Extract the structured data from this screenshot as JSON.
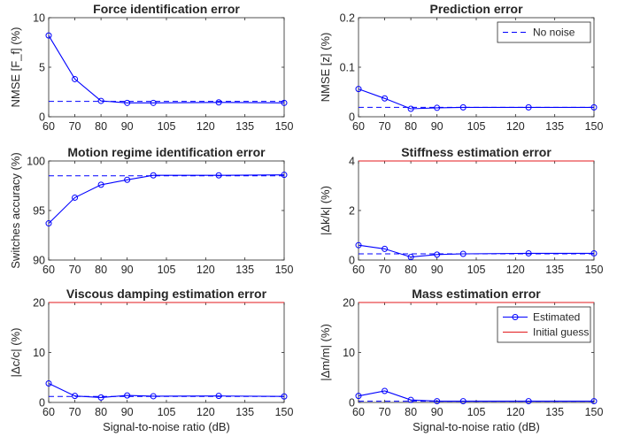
{
  "chart_data": [
    {
      "type": "line",
      "title": "Force identification error",
      "ylabel": "NMSE [F_f] (%)",
      "xlabel": "",
      "x": [
        60,
        70,
        80,
        90,
        100,
        125,
        150
      ],
      "xticks": [
        60,
        70,
        80,
        90,
        105,
        120,
        135,
        150
      ],
      "xlim": [
        60,
        150
      ],
      "ylim": [
        0,
        10
      ],
      "yticks": [
        0,
        5,
        10
      ],
      "series": [
        {
          "name": "Estimated",
          "color": "#0000ff",
          "style": "solid-circle",
          "values": [
            8.2,
            3.8,
            1.6,
            1.4,
            1.4,
            1.45,
            1.4
          ]
        },
        {
          "name": "No noise",
          "color": "#0000ff",
          "style": "dashed",
          "values": [
            1.55,
            1.55,
            1.55,
            1.55,
            1.55,
            1.55,
            1.55
          ]
        }
      ],
      "legend": null
    },
    {
      "type": "line",
      "title": "Prediction error",
      "ylabel": "NMSE [z] (%)",
      "xlabel": "",
      "x": [
        60,
        70,
        80,
        90,
        100,
        125,
        150
      ],
      "xticks": [
        60,
        70,
        80,
        90,
        105,
        120,
        135,
        150
      ],
      "xlim": [
        60,
        150
      ],
      "ylim": [
        0,
        0.2
      ],
      "yticks": [
        0,
        0.1,
        0.2
      ],
      "series": [
        {
          "name": "Estimated",
          "color": "#0000ff",
          "style": "solid-circle",
          "values": [
            0.056,
            0.037,
            0.016,
            0.018,
            0.019,
            0.019,
            0.019
          ]
        },
        {
          "name": "No noise",
          "color": "#0000ff",
          "style": "dashed",
          "values": [
            0.019,
            0.019,
            0.019,
            0.019,
            0.019,
            0.019,
            0.019
          ]
        }
      ],
      "legend": {
        "position": "top-right",
        "entries": [
          {
            "label": "No noise",
            "series": 1
          }
        ]
      }
    },
    {
      "type": "line",
      "title": "Motion regime identification error",
      "ylabel": "Switches accuracy (%)",
      "xlabel": "",
      "x": [
        60,
        70,
        80,
        90,
        100,
        125,
        150
      ],
      "xticks": [
        60,
        70,
        80,
        90,
        105,
        120,
        135,
        150
      ],
      "xlim": [
        60,
        150
      ],
      "ylim": [
        90,
        100
      ],
      "yticks": [
        90,
        95,
        100
      ],
      "series": [
        {
          "name": "Estimated",
          "color": "#0000ff",
          "style": "solid-circle",
          "values": [
            93.7,
            96.3,
            97.6,
            98.1,
            98.55,
            98.55,
            98.6
          ]
        },
        {
          "name": "No noise",
          "color": "#0000ff",
          "style": "dashed",
          "values": [
            98.5,
            98.5,
            98.5,
            98.5,
            98.5,
            98.5,
            98.5
          ]
        }
      ],
      "legend": null
    },
    {
      "type": "line",
      "title": "Stiffness estimation error",
      "ylabel": "|Δk/k| (%)",
      "xlabel": "",
      "x": [
        60,
        70,
        80,
        90,
        100,
        125,
        150
      ],
      "xticks": [
        60,
        70,
        80,
        90,
        105,
        120,
        135,
        150
      ],
      "xlim": [
        60,
        150
      ],
      "ylim": [
        0,
        4
      ],
      "yticks": [
        0,
        2,
        4
      ],
      "series": [
        {
          "name": "Estimated",
          "color": "#0000ff",
          "style": "solid-circle",
          "values": [
            0.6,
            0.45,
            0.12,
            0.22,
            0.25,
            0.27,
            0.27
          ]
        },
        {
          "name": "No noise",
          "color": "#0000ff",
          "style": "dashed",
          "values": [
            0.25,
            0.25,
            0.25,
            0.25,
            0.25,
            0.25,
            0.25
          ]
        },
        {
          "name": "Initial guess",
          "color": "#e31a1c",
          "style": "solid",
          "values": [
            4,
            4,
            4,
            4,
            4,
            4,
            4
          ]
        }
      ],
      "legend": null
    },
    {
      "type": "line",
      "title": "Viscous damping estimation error",
      "ylabel": "|Δc/c| (%)",
      "xlabel": "Signal-to-noise ratio (dB)",
      "x": [
        60,
        70,
        80,
        90,
        100,
        125,
        150
      ],
      "xticks": [
        60,
        70,
        80,
        90,
        105,
        120,
        135,
        150
      ],
      "xlim": [
        60,
        150
      ],
      "ylim": [
        0,
        20
      ],
      "yticks": [
        0,
        10,
        20
      ],
      "series": [
        {
          "name": "Estimated",
          "color": "#0000ff",
          "style": "solid-circle",
          "values": [
            3.8,
            1.3,
            1.0,
            1.4,
            1.25,
            1.3,
            1.2
          ]
        },
        {
          "name": "No noise",
          "color": "#0000ff",
          "style": "dashed",
          "values": [
            1.2,
            1.2,
            1.2,
            1.2,
            1.2,
            1.2,
            1.2
          ]
        },
        {
          "name": "Initial guess",
          "color": "#e31a1c",
          "style": "solid",
          "values": [
            20,
            20,
            20,
            20,
            20,
            20,
            20
          ]
        }
      ],
      "legend": null
    },
    {
      "type": "line",
      "title": "Mass estimation error",
      "ylabel": "|Δm/m| (%)",
      "xlabel": "Signal-to-noise ratio (dB)",
      "x": [
        60,
        70,
        80,
        90,
        100,
        125,
        150
      ],
      "xticks": [
        60,
        70,
        80,
        90,
        105,
        120,
        135,
        150
      ],
      "xlim": [
        60,
        150
      ],
      "ylim": [
        0,
        20
      ],
      "yticks": [
        0,
        10,
        20
      ],
      "series": [
        {
          "name": "Estimated",
          "color": "#0000ff",
          "style": "solid-circle",
          "values": [
            1.3,
            2.3,
            0.5,
            0.25,
            0.25,
            0.25,
            0.25
          ]
        },
        {
          "name": "No noise",
          "color": "#0000ff",
          "style": "dashed",
          "values": [
            0.25,
            0.25,
            0.25,
            0.25,
            0.25,
            0.25,
            0.25
          ]
        },
        {
          "name": "Initial guess",
          "color": "#e31a1c",
          "style": "solid",
          "values": [
            20,
            20,
            20,
            20,
            20,
            20,
            20
          ]
        }
      ],
      "legend": {
        "position": "top-right",
        "entries": [
          {
            "label": "Estimated",
            "series": 0
          },
          {
            "label": "Initial guess",
            "series": 2
          }
        ]
      }
    }
  ]
}
